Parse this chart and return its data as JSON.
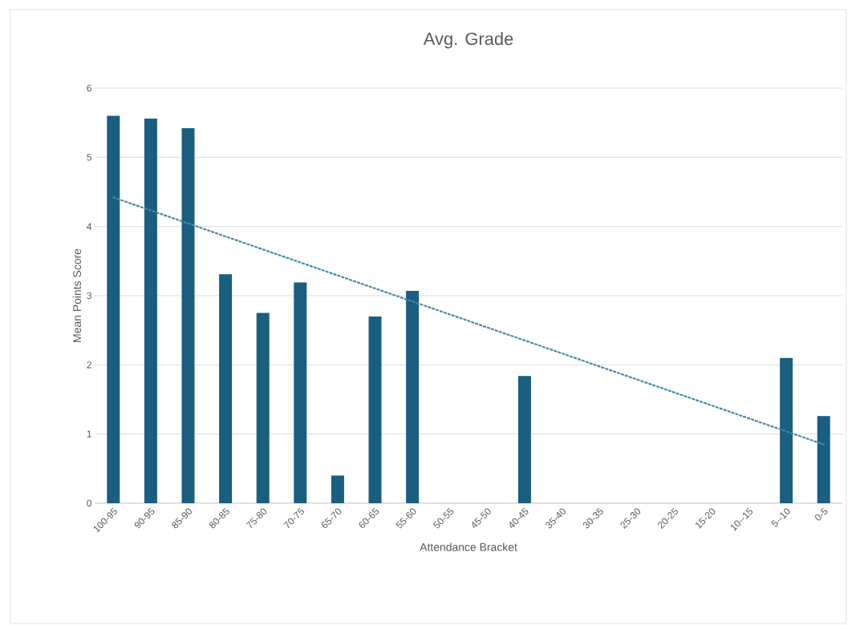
{
  "chart_data": {
    "type": "bar",
    "title": "Avg. Grade",
    "xlabel": "Attendance Bracket",
    "ylabel": "Mean Points Score",
    "categories": [
      "100-95",
      "90-95",
      "85-90",
      "80-85",
      "75-80",
      "70-75",
      "65-70",
      "60-65",
      "55-60",
      "50-55",
      "45-50",
      "40-45",
      "35-40",
      "30-35",
      "25-30",
      "20-25",
      "15-20",
      "10--15",
      "5--10",
      "0-5"
    ],
    "series": [
      {
        "color": "#1a5e80",
        "values": [
          5.6,
          5.56,
          5.42,
          3.31,
          2.75,
          3.19,
          0.4,
          2.7,
          3.07,
          null,
          null,
          1.84,
          null,
          null,
          null,
          null,
          null,
          null,
          2.1,
          1.26
        ]
      },
      {
        "type": "line",
        "color": "#4a88a8",
        "line_style": "dotted",
        "values": [
          4.42,
          null,
          null,
          null,
          null,
          null,
          null,
          null,
          null,
          null,
          null,
          null,
          null,
          null,
          null,
          null,
          null,
          null,
          null,
          0.85
        ]
      }
    ],
    "ylim": [
      0,
      6
    ],
    "yticks": [
      0,
      1,
      2,
      3,
      4,
      5,
      6
    ],
    "grid": "y"
  }
}
